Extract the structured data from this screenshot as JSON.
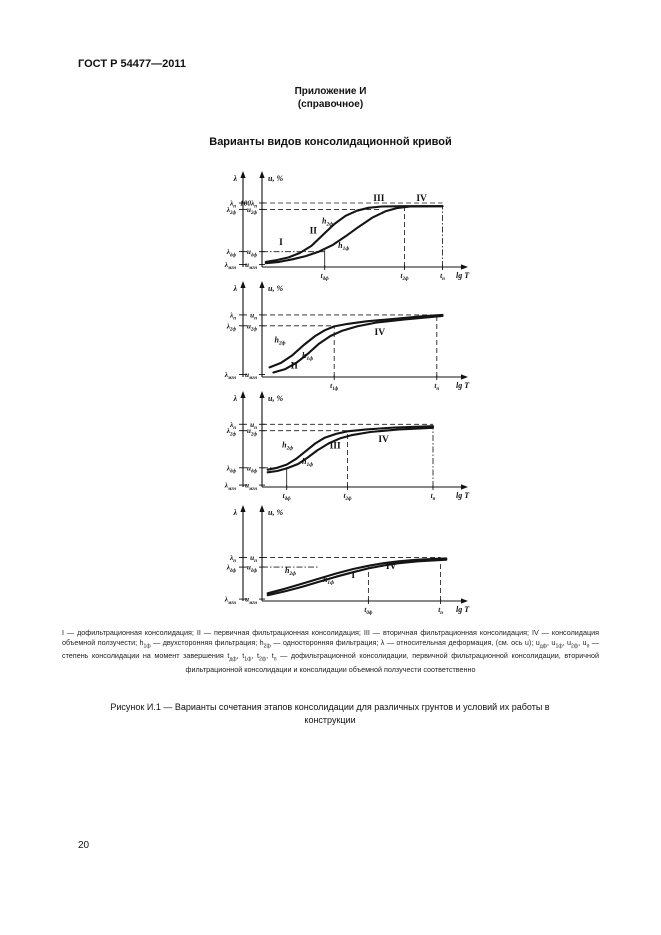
{
  "page": {
    "header": "ГОСТ Р 54477—2011",
    "appendix_title": "Приложение И",
    "appendix_subtitle": "(справочное)",
    "figure_title": "Варианты видов консолидационной кривой",
    "page_number": "20"
  },
  "caption": {
    "legend": "I — дофильтрационная консолидация; II — первичная фильтрационная консолидация; III — вторичная фильтрационная консолидация; IV — консолидация объемной ползучести; h_{1ф} — двухсторонняя фильтрация; h_{2ф} — односторонняя фильтрация; λ — относительная деформация, (см. ось u); u_{дф}, u_{1ф}, u_{2ф}, u_{п} — степень консолидации на момент завершения t_{дф}, t_{1ф}, t_{2ф}, t_{п} — дофильтрационной консолидации, первичной фильтрационной консолидации, вторичной фильтрационной консолидации и консолидации объемной ползучести соответственно",
    "figure_caption": "Рисунок И.1 — Варианты сочетания этапов консолидации для различных грунтов и условий их работы в конструкции"
  },
  "chart_data": [
    {
      "type": "line",
      "y_left": {
        "label": "λ",
        "ticks": [
          {
            "t": "λ_{п}",
            "v": 100
          },
          {
            "t": "λ_{2ф}",
            "v": 90
          },
          {
            "t": "λ_{дф}",
            "v": 24
          },
          {
            "t": "λ_{мгн}",
            "v": 4
          }
        ]
      },
      "y_right": {
        "label": "u, %",
        "ticks": [
          {
            "t": "100λ_{п}",
            "v": 100
          },
          {
            "t": "u_{2ф}",
            "v": 90
          },
          {
            "t": "u_{дф}",
            "v": 24
          },
          {
            "t": "u_{мгн}",
            "v": 4
          }
        ]
      },
      "x_axis": {
        "label": "lg T",
        "ticks": [
          {
            "t": "t_{дф}",
            "x": 0.33
          },
          {
            "t": "t_{2ф}",
            "x": 0.75
          },
          {
            "t": "t_{п}",
            "x": 0.95
          }
        ]
      },
      "series": [
        {
          "name": "h_{2ф}",
          "label_at": [
            0.345,
            68
          ],
          "points": [
            [
              0.02,
              8
            ],
            [
              0.08,
              11
            ],
            [
              0.14,
              15
            ],
            [
              0.2,
              22
            ],
            [
              0.26,
              33
            ],
            [
              0.32,
              50
            ],
            [
              0.38,
              67
            ],
            [
              0.44,
              80
            ],
            [
              0.5,
              88
            ],
            [
              0.56,
              92.5
            ],
            [
              0.63,
              94.5
            ],
            [
              0.75,
              95
            ],
            [
              0.95,
              95
            ]
          ]
        },
        {
          "name": "h_{1ф}",
          "label_at": [
            0.43,
            30
          ],
          "points": [
            [
              0.02,
              6
            ],
            [
              0.09,
              8
            ],
            [
              0.16,
              12
            ],
            [
              0.23,
              17
            ],
            [
              0.3,
              24
            ],
            [
              0.37,
              34
            ],
            [
              0.44,
              48
            ],
            [
              0.51,
              63
            ],
            [
              0.58,
              77
            ],
            [
              0.65,
              87
            ],
            [
              0.71,
              92
            ],
            [
              0.78,
              94.5
            ],
            [
              0.95,
              95
            ]
          ]
        }
      ],
      "regions": [
        {
          "t": "I",
          "at": [
            0.1,
            34
          ]
        },
        {
          "t": "II",
          "at": [
            0.27,
            52
          ]
        },
        {
          "t": "III",
          "at": [
            0.615,
            103
          ]
        },
        {
          "t": "IV",
          "at": [
            0.84,
            103
          ]
        }
      ],
      "guides": [
        {
          "o": "h",
          "v": 100,
          "x2": 0.95,
          "style": "dashed"
        },
        {
          "o": "h",
          "v": 90,
          "x2": 0.62,
          "style": "dashed"
        },
        {
          "o": "h",
          "v": 24,
          "x2": 0.33,
          "style": "dashdot"
        },
        {
          "o": "v",
          "x": 0.33,
          "v2": 26,
          "style": "solid"
        },
        {
          "o": "v",
          "x": 0.75,
          "v2": 95,
          "style": "dashed"
        },
        {
          "o": "v",
          "x": 0.95,
          "v2": 95,
          "style": "dashdot"
        }
      ]
    },
    {
      "type": "line",
      "y_left": {
        "label": "λ",
        "ticks": [
          {
            "t": "λ_{п}",
            "v": 97
          },
          {
            "t": "λ_{2ф}",
            "v": 80
          },
          {
            "t": "λ_{мгн}",
            "v": 4
          }
        ]
      },
      "y_right": {
        "label": "u, %",
        "ticks": [
          {
            "t": "u_{п}",
            "v": 97
          },
          {
            "t": "u_{2ф}",
            "v": 80
          },
          {
            "t": "u_{мгн}",
            "v": 4
          }
        ]
      },
      "x_axis": {
        "label": "lg T",
        "ticks": [
          {
            "t": "t_{1ф}",
            "x": 0.38
          },
          {
            "t": "t_{п}",
            "x": 0.92
          }
        ]
      },
      "series": [
        {
          "name": "h_{2ф}",
          "label_at": [
            0.095,
            54
          ],
          "points": [
            [
              0.04,
              15
            ],
            [
              0.1,
              22
            ],
            [
              0.16,
              34
            ],
            [
              0.22,
              50
            ],
            [
              0.28,
              64
            ],
            [
              0.33,
              73
            ],
            [
              0.38,
              79
            ],
            [
              0.45,
              83
            ],
            [
              0.55,
              87
            ],
            [
              0.7,
              91
            ],
            [
              0.85,
              95
            ],
            [
              0.95,
              97
            ]
          ]
        },
        {
          "name": "h_{1ф}",
          "label_at": [
            0.24,
            30
          ],
          "points": [
            [
              0.06,
              7
            ],
            [
              0.12,
              12
            ],
            [
              0.18,
              22
            ],
            [
              0.24,
              36
            ],
            [
              0.3,
              52
            ],
            [
              0.36,
              64
            ],
            [
              0.42,
              72
            ],
            [
              0.5,
              79
            ],
            [
              0.6,
              85
            ],
            [
              0.75,
              90
            ],
            [
              0.95,
              95.5
            ]
          ]
        }
      ],
      "regions": [
        {
          "t": "II",
          "at": [
            0.17,
            13
          ]
        },
        {
          "t": "IV",
          "at": [
            0.62,
            66
          ]
        }
      ],
      "guides": [
        {
          "o": "h",
          "v": 97,
          "x2": 0.92,
          "style": "dashed"
        },
        {
          "o": "h",
          "v": 80,
          "x2": 0.38,
          "style": "dashed"
        },
        {
          "o": "v",
          "x": 0.38,
          "v2": 80,
          "style": "dashed"
        },
        {
          "o": "v",
          "x": 0.92,
          "v2": 97,
          "style": "dashed"
        }
      ]
    },
    {
      "type": "line",
      "y_left": {
        "label": "λ",
        "ticks": [
          {
            "t": "λ_{п}",
            "v": 98
          },
          {
            "t": "λ_{2ф}",
            "v": 88
          },
          {
            "t": "λ_{дф}",
            "v": 30
          },
          {
            "t": "λ_{мгн}",
            "v": 3
          }
        ]
      },
      "y_right": {
        "label": "u, %",
        "ticks": [
          {
            "t": "u_{п}",
            "v": 98
          },
          {
            "t": "u_{2ф}",
            "v": 88
          },
          {
            "t": "u_{дф}",
            "v": 30
          },
          {
            "t": "u_{мгн}",
            "v": 3
          }
        ]
      },
      "x_axis": {
        "label": "lg T",
        "ticks": [
          {
            "t": "t_{дф}",
            "x": 0.13
          },
          {
            "t": "t_{2ф}",
            "x": 0.45
          },
          {
            "t": "t_{п}",
            "x": 0.9
          }
        ]
      },
      "series": [
        {
          "name": "h_{2ф}",
          "label_at": [
            0.135,
            62
          ],
          "points": [
            [
              0.03,
              27
            ],
            [
              0.08,
              30
            ],
            [
              0.13,
              35
            ],
            [
              0.18,
              44
            ],
            [
              0.23,
              56
            ],
            [
              0.28,
              68
            ],
            [
              0.33,
              77
            ],
            [
              0.39,
              83
            ],
            [
              0.45,
              87
            ],
            [
              0.55,
              90
            ],
            [
              0.7,
              93
            ],
            [
              0.9,
              95
            ]
          ]
        },
        {
          "name": "h_{1ф}",
          "label_at": [
            0.24,
            36
          ],
          "points": [
            [
              0.03,
              23
            ],
            [
              0.08,
              25
            ],
            [
              0.13,
              29
            ],
            [
              0.19,
              36
            ],
            [
              0.24,
              46
            ],
            [
              0.29,
              57
            ],
            [
              0.35,
              68
            ],
            [
              0.41,
              76
            ],
            [
              0.47,
              81
            ],
            [
              0.57,
              86
            ],
            [
              0.72,
              90
            ],
            [
              0.9,
              92.5
            ]
          ]
        }
      ],
      "regions": [
        {
          "t": "III",
          "at": [
            0.385,
            60
          ]
        },
        {
          "t": "IV",
          "at": [
            0.64,
            70
          ]
        }
      ],
      "guides": [
        {
          "o": "h",
          "v": 98,
          "x2": 0.9,
          "style": "dashed"
        },
        {
          "o": "h",
          "v": 88,
          "x2": 0.45,
          "style": "dashed"
        },
        {
          "o": "h",
          "v": 30,
          "x2": 0.08,
          "style": "dashdot"
        },
        {
          "o": "v",
          "x": 0.13,
          "v2": 31,
          "style": "solid"
        },
        {
          "o": "v",
          "x": 0.45,
          "v2": 88,
          "style": "dashed"
        },
        {
          "o": "v",
          "x": 0.9,
          "v2": 94,
          "style": "dashdot"
        }
      ]
    },
    {
      "type": "line",
      "y_left": {
        "label": "λ",
        "ticks": [
          {
            "t": "λ_{п}",
            "v": 68
          },
          {
            "t": "λ_{дф}",
            "v": 53
          },
          {
            "t": "λ_{мгн}",
            "v": 3
          }
        ]
      },
      "y_right": {
        "label": "u, %",
        "ticks": [
          {
            "t": "u_{п}",
            "v": 68
          },
          {
            "t": "u_{дф}",
            "v": 53
          },
          {
            "t": "u_{мгн}",
            "v": 3
          }
        ]
      },
      "x_axis": {
        "label": "lg T",
        "ticks": [
          {
            "t": "t_{дф}",
            "x": 0.56
          },
          {
            "t": "t_{п}",
            "x": 0.94
          }
        ]
      },
      "series": [
        {
          "name": "h_{2ф}",
          "label_at": [
            0.15,
            44
          ],
          "points": [
            [
              0.03,
              12
            ],
            [
              0.12,
              19
            ],
            [
              0.21,
              27
            ],
            [
              0.3,
              35
            ],
            [
              0.39,
              43
            ],
            [
              0.48,
              50
            ],
            [
              0.56,
              55
            ],
            [
              0.64,
              59
            ],
            [
              0.72,
              62
            ],
            [
              0.82,
              64.5
            ],
            [
              0.97,
              66.5
            ]
          ]
        },
        {
          "name": "h_{1ф}",
          "label_at": [
            0.35,
            30
          ],
          "points": [
            [
              0.03,
              9
            ],
            [
              0.12,
              15
            ],
            [
              0.21,
              22
            ],
            [
              0.3,
              30
            ],
            [
              0.39,
              38
            ],
            [
              0.48,
              45
            ],
            [
              0.56,
              51
            ],
            [
              0.64,
              55.5
            ],
            [
              0.72,
              59
            ],
            [
              0.82,
              62
            ],
            [
              0.97,
              64.5
            ]
          ]
        }
      ],
      "regions": [
        {
          "t": "I",
          "at": [
            0.48,
            36
          ]
        },
        {
          "t": "IV",
          "at": [
            0.68,
            50
          ]
        }
      ],
      "guides": [
        {
          "o": "h",
          "v": 68,
          "x2": 0.94,
          "style": "dashed"
        },
        {
          "o": "h",
          "v": 53,
          "x2": 0.3,
          "style": "dashdot"
        },
        {
          "o": "v",
          "x": 0.56,
          "v2": 53,
          "style": "dashed"
        },
        {
          "o": "v",
          "x": 0.94,
          "v2": 66,
          "style": "dashed"
        }
      ]
    }
  ]
}
